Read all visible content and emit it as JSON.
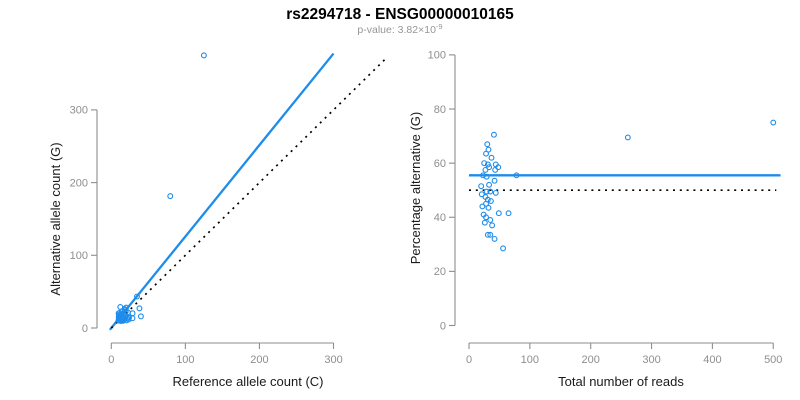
{
  "header": {
    "title": "rs2294718 - ENSG00000010165",
    "p_value_prefix": "p-value: 3.82×10",
    "p_value_exponent": "-9"
  },
  "colors": {
    "accent_blue": "#1E8CEB",
    "dotted_line_black": "#000000",
    "axis_gray": "#8E8E8E",
    "tick_label_gray": "#8E8E8E",
    "axis_title_black": "#1A1A1A",
    "title_black": "#000000",
    "subtitle_gray": "#969696",
    "background": "#FFFFFF"
  },
  "chart_data": [
    {
      "id": "allele-counts-panel",
      "type": "scatter",
      "title": "",
      "xlabel": "Reference allele count (C)",
      "ylabel": "Alternative allele count (G)",
      "xticks": [
        0,
        100,
        200,
        300
      ],
      "yticks": [
        0,
        100,
        200,
        300
      ],
      "xlim": [
        -15,
        330
      ],
      "ylim": [
        -20,
        390
      ],
      "grid": false,
      "legend": "none",
      "marker": "open-circle",
      "points": [
        [
          12.1,
          28.9
        ],
        [
          9.9,
          20.1
        ],
        [
          11.2,
          20.8
        ],
        [
          10.2,
          17.8
        ],
        [
          14.1,
          22.9
        ],
        [
          10,
          15
        ],
        [
          12.6,
          18.4
        ],
        [
          17.8,
          26.2
        ],
        [
          13.7,
          19.3
        ],
        [
          19.9,
          28.1
        ],
        [
          18.3,
          24.7
        ],
        [
          11.5,
          15.5
        ],
        [
          10.2,
          12.8
        ],
        [
          13.1,
          16
        ],
        [
          34.7,
          43.3
        ],
        [
          19.5,
          22.5
        ],
        [
          15.8,
          17.2
        ],
        [
          9.7,
          10.3
        ],
        [
          14.6,
          14.4
        ],
        [
          17.7,
          17.3
        ],
        [
          22.4,
          21.6
        ],
        [
          10.8,
          10.2
        ],
        [
          14.2,
          12.8
        ],
        [
          16.6,
          14.4
        ],
        [
          19.4,
          16.6
        ],
        [
          15.4,
          12.6
        ],
        [
          12.3,
          9.7
        ],
        [
          18.1,
          13.9
        ],
        [
          28.7,
          20.3
        ],
        [
          38,
          27
        ],
        [
          14.2,
          9.8
        ],
        [
          16.8,
          11.2
        ],
        [
          21.4,
          13.7
        ],
        [
          16.1,
          9.9
        ],
        [
          23.9,
          14.1
        ],
        [
          20.6,
          10.4
        ],
        [
          23.3,
          11.7
        ],
        [
          28.6,
          13.4
        ],
        [
          40,
          16
        ],
        [
          79.6,
          181.4
        ],
        [
          125,
          375
        ]
      ],
      "lines": [
        {
          "name": "fit-line",
          "style": "solid",
          "color_key": "accent_blue",
          "x1": -2,
          "y1": -2.5,
          "x2": 300,
          "y2": 377.5
        },
        {
          "name": "identity-line",
          "style": "dotted",
          "color_key": "dotted_line_black",
          "x1": 0,
          "y1": 0,
          "x2": 372,
          "y2": 372
        }
      ]
    },
    {
      "id": "percentage-reads-panel",
      "type": "scatter",
      "title": "",
      "xlabel": "Total number of reads",
      "ylabel": "Percentage alternative (G)",
      "xticks": [
        0,
        100,
        200,
        300,
        400,
        500
      ],
      "yticks": [
        0,
        20,
        40,
        60,
        80,
        100
      ],
      "xlim": [
        -20,
        520
      ],
      "ylim": [
        -5,
        105
      ],
      "grid": false,
      "legend": "none",
      "marker": "open-circle",
      "points": [
        [
          41,
          70.5
        ],
        [
          30,
          67
        ],
        [
          32,
          65
        ],
        [
          28,
          63.5
        ],
        [
          37,
          62
        ],
        [
          25,
          60
        ],
        [
          31,
          59.5
        ],
        [
          44,
          59.5
        ],
        [
          33,
          58.5
        ],
        [
          48,
          58.5
        ],
        [
          43,
          57.5
        ],
        [
          27,
          57.5
        ],
        [
          23,
          55.5
        ],
        [
          29,
          55
        ],
        [
          78,
          55.5
        ],
        [
          42,
          53.5
        ],
        [
          33,
          52
        ],
        [
          20,
          51.5
        ],
        [
          29,
          49.5
        ],
        [
          35,
          49.5
        ],
        [
          44,
          49
        ],
        [
          21,
          48.5
        ],
        [
          27,
          47.5
        ],
        [
          31,
          46.5
        ],
        [
          36,
          46
        ],
        [
          28,
          45
        ],
        [
          22,
          44
        ],
        [
          32,
          43.5
        ],
        [
          49,
          41.5
        ],
        [
          65,
          41.5
        ],
        [
          24,
          41
        ],
        [
          28,
          40
        ],
        [
          35,
          39
        ],
        [
          26,
          38
        ],
        [
          38,
          37
        ],
        [
          31,
          33.5
        ],
        [
          35,
          33.5
        ],
        [
          42,
          32
        ],
        [
          56,
          28.5
        ],
        [
          261,
          69.5
        ],
        [
          500,
          75
        ]
      ],
      "lines": [
        {
          "name": "mean-percentage-line",
          "style": "solid",
          "color_key": "accent_blue",
          "x1": 0,
          "y1": 55.5,
          "x2": 512,
          "y2": 55.5
        },
        {
          "name": "expected-50-line",
          "style": "dotted",
          "color_key": "dotted_line_black",
          "x1": 0,
          "y1": 50,
          "x2": 505,
          "y2": 50
        }
      ]
    }
  ]
}
